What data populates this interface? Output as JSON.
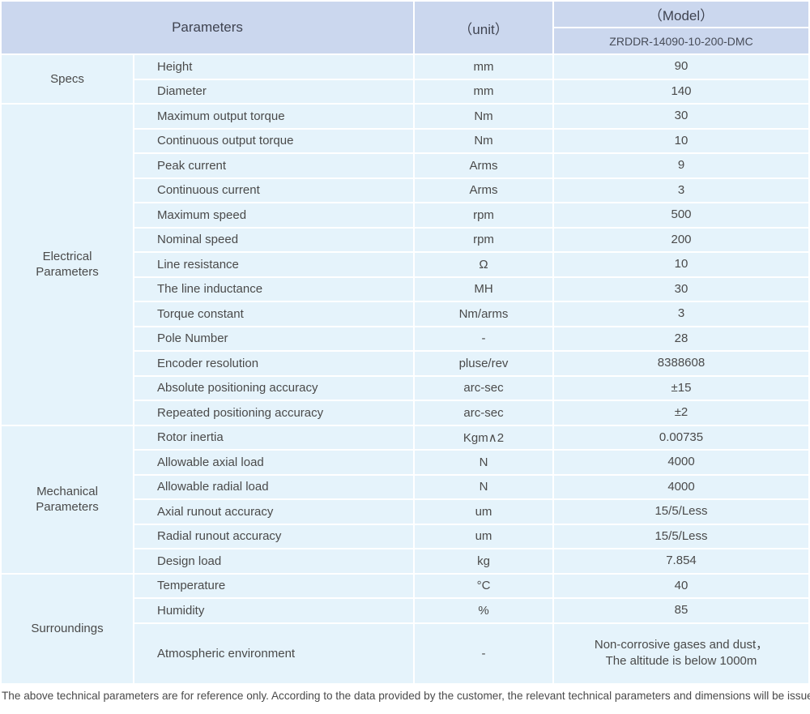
{
  "colors": {
    "header_bg": "#cbd7ee",
    "cell_bg": "#e5f3fb",
    "separator": "#ffffff",
    "text": "#4a4a4a"
  },
  "header": {
    "parameters": "Parameters",
    "unit": "（unit）",
    "model": "（Model）",
    "model_value": "ZRDDR-14090-10-200-DMC"
  },
  "groups": [
    {
      "name": "Specs",
      "rows": [
        {
          "param": "Height",
          "unit": "mm",
          "value": "90"
        },
        {
          "param": "Diameter",
          "unit": "mm",
          "value": "140"
        }
      ]
    },
    {
      "name": "Electrical\nParameters",
      "rows": [
        {
          "param": "Maximum output torque",
          "unit": "Nm",
          "value": "30"
        },
        {
          "param": "Continuous output torque",
          "unit": "Nm",
          "value": "10"
        },
        {
          "param": "Peak current",
          "unit": "Arms",
          "value": "9"
        },
        {
          "param": "Continuous current",
          "unit": "Arms",
          "value": "3"
        },
        {
          "param": "Maximum speed",
          "unit": "rpm",
          "value": "500"
        },
        {
          "param": "Nominal speed",
          "unit": "rpm",
          "value": "200"
        },
        {
          "param": "Line resistance",
          "unit": "Ω",
          "value": "10"
        },
        {
          "param": "The line inductance",
          "unit": "MH",
          "value": "30"
        },
        {
          "param": "Torque constant",
          "unit": "Nm/arms",
          "value": "3"
        },
        {
          "param": "Pole Number",
          "unit": "-",
          "value": "28"
        },
        {
          "param": "Encoder resolution",
          "unit": "pluse/rev",
          "value": "8388608"
        },
        {
          "param": "Absolute positioning accuracy",
          "unit": "arc-sec",
          "value": "±15"
        },
        {
          "param": "Repeated positioning accuracy",
          "unit": "arc-sec",
          "value": "±2"
        }
      ]
    },
    {
      "name": "Mechanical\nParameters",
      "rows": [
        {
          "param": "Rotor inertia",
          "unit": "Kgm∧2",
          "value": "0.00735"
        },
        {
          "param": "Allowable axial load",
          "unit": "N",
          "value": "4000"
        },
        {
          "param": "Allowable radial load",
          "unit": "N",
          "value": "4000"
        },
        {
          "param": "Axial runout accuracy",
          "unit": "um",
          "value": "15/5/Less"
        },
        {
          "param": "Radial runout accuracy",
          "unit": "um",
          "value": "15/5/Less"
        },
        {
          "param": "Design load",
          "unit": "kg",
          "value": "7.854"
        }
      ]
    },
    {
      "name": "Surroundings",
      "rows": [
        {
          "param": "Temperature",
          "unit": "°C",
          "value": "40"
        },
        {
          "param": "Humidity",
          "unit": "%",
          "value": "85"
        },
        {
          "param": "Atmospheric environment",
          "unit": "-",
          "value": "Non-corrosive gases and dust，\nThe altitude is below 1000m"
        }
      ]
    }
  ],
  "footer_note": "The above technical parameters are for reference only. According to the data provided by the customer, the relevant technical parameters and dimensions will be issued."
}
